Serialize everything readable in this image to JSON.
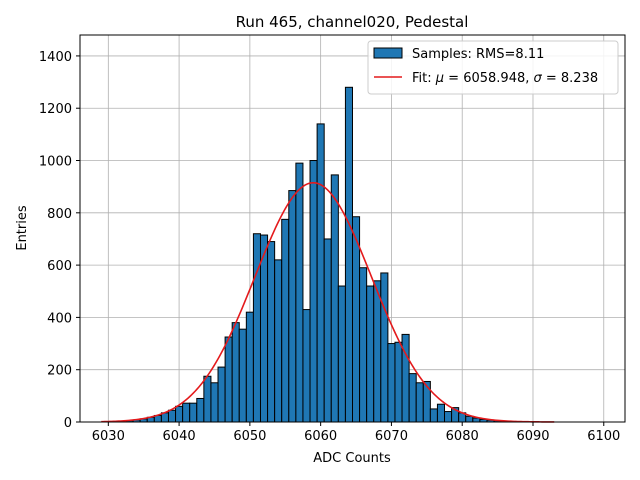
{
  "chart_data": {
    "type": "bar",
    "title": "Run 465, channel020, Pedestal",
    "xlabel": "ADC Counts",
    "ylabel": "Entries",
    "xlim": [
      6026,
      6103
    ],
    "ylim": [
      0,
      1480
    ],
    "xticks": [
      6030,
      6040,
      6050,
      6060,
      6070,
      6080,
      6090,
      6100
    ],
    "yticks": [
      0,
      200,
      400,
      600,
      800,
      1000,
      1200,
      1400
    ],
    "grid": true,
    "legend_position": "top-right",
    "histogram": {
      "name": "Samples: RMS=8.11",
      "color": "#1f77b4",
      "bins": [
        [
          6030,
          1
        ],
        [
          6031,
          2
        ],
        [
          6032,
          3
        ],
        [
          6033,
          5
        ],
        [
          6034,
          8
        ],
        [
          6035,
          12
        ],
        [
          6036,
          18
        ],
        [
          6037,
          25
        ],
        [
          6038,
          35
        ],
        [
          6039,
          45
        ],
        [
          6040,
          60
        ],
        [
          6041,
          72
        ],
        [
          6042,
          72
        ],
        [
          6043,
          90
        ],
        [
          6044,
          175
        ],
        [
          6045,
          150
        ],
        [
          6046,
          210
        ],
        [
          6047,
          325
        ],
        [
          6048,
          380
        ],
        [
          6049,
          355
        ],
        [
          6050,
          420
        ],
        [
          6051,
          720
        ],
        [
          6052,
          715
        ],
        [
          6053,
          690
        ],
        [
          6054,
          620
        ],
        [
          6055,
          775
        ],
        [
          6056,
          885
        ],
        [
          6057,
          990
        ],
        [
          6058,
          430
        ],
        [
          6059,
          1000
        ],
        [
          6060,
          1140
        ],
        [
          6061,
          700
        ],
        [
          6062,
          945
        ],
        [
          6063,
          520
        ],
        [
          6064,
          1280
        ],
        [
          6065,
          785
        ],
        [
          6066,
          590
        ],
        [
          6067,
          520
        ],
        [
          6068,
          540
        ],
        [
          6069,
          570
        ],
        [
          6070,
          300
        ],
        [
          6071,
          305
        ],
        [
          6072,
          335
        ],
        [
          6073,
          185
        ],
        [
          6074,
          150
        ],
        [
          6075,
          155
        ],
        [
          6076,
          50
        ],
        [
          6077,
          68
        ],
        [
          6078,
          40
        ],
        [
          6079,
          55
        ],
        [
          6080,
          35
        ],
        [
          6081,
          22
        ],
        [
          6082,
          15
        ],
        [
          6083,
          10
        ],
        [
          6084,
          7
        ],
        [
          6085,
          5
        ],
        [
          6086,
          3
        ],
        [
          6087,
          2
        ],
        [
          6088,
          1
        ]
      ]
    },
    "fit": {
      "name_prefix": "Fit: ",
      "mu_symbol": "μ",
      "sigma_symbol": "σ",
      "mu_text": " = 6058.948, ",
      "sigma_text": " = 8.238",
      "mu": 6058.948,
      "sigma": 8.238,
      "amplitude": 915,
      "x_range": [
        6029,
        6093
      ],
      "color": "#e41a1c"
    }
  }
}
